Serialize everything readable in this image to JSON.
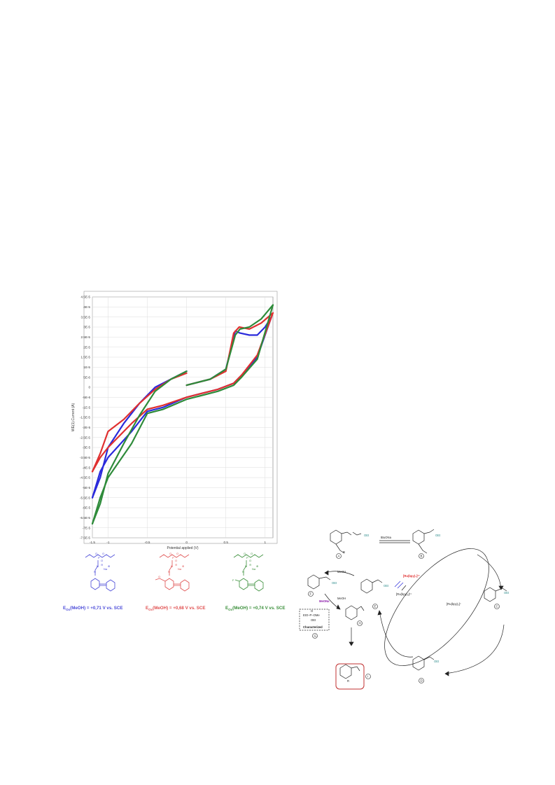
{
  "chart_data": {
    "type": "line",
    "title": "",
    "xlabel": "Potential applied (V)",
    "ylabel": "WE(1).Current (A)",
    "xlim": [
      -1.2,
      1.1
    ],
    "ylim": [
      -7.5e-05,
      4.5e-05
    ],
    "grid": true,
    "x_ticks": [
      "-1.5",
      "-1",
      "-0.5",
      "0",
      "0.5",
      "1"
    ],
    "x_tick_values": [
      -1.2,
      -1,
      -0.5,
      0,
      0.5,
      1
    ],
    "y_ticks": [
      "4.5E-5",
      "4E-5",
      "3.5E-5",
      "3E-5",
      "2.5E-5",
      "2E-5",
      "1.5E-5",
      "1E-5",
      "5E-6",
      "0",
      "-5E-6",
      "-1E-5",
      "-1.5E-5",
      "-2E-5",
      "-2.5E-5",
      "-3E-5",
      "-3.5E-5",
      "-4E-5",
      "-4.5E-5",
      "-5E-5",
      "-5.5E-5",
      "-6E-5",
      "-6.5E-5",
      "-7E-5",
      "-7.5E-5"
    ],
    "series": [
      {
        "color": "#2a2adb",
        "segments": [
          {
            "x": [
              0,
              0.3,
              0.5,
              0.62,
              0.68,
              0.8,
              0.9,
              1.0,
              1.08
            ],
            "y": [
              1e-06,
              4e-06,
              9e-06,
              2.8e-05,
              2.7e-05,
              2.6e-05,
              2.6e-05,
              3e-05,
              3.5e-05
            ]
          },
          {
            "x": [
              1.08,
              0.9,
              0.7,
              0.6,
              0.4,
              0.2,
              0,
              -0.3,
              -0.5,
              -0.7,
              -1.0,
              -1.1,
              -1.2
            ],
            "y": [
              3.5e-05,
              1.5e-05,
              6e-06,
              2e-06,
              -1e-06,
              -3e-06,
              -5e-06,
              -1e-05,
              -1.2e-05,
              -2.2e-05,
              -3.5e-05,
              -4.2e-05,
              -5.5e-05
            ]
          },
          {
            "x": [
              -1.2,
              -1.1,
              -1.0,
              -0.8,
              -0.6,
              -0.4,
              -0.2,
              0
            ],
            "y": [
              -5.5e-05,
              -4.5e-05,
              -3e-05,
              -1.8e-05,
              -8e-06,
              0,
              4e-06,
              8e-06
            ]
          }
        ]
      },
      {
        "color": "#e03030",
        "segments": [
          {
            "x": [
              0,
              0.3,
              0.5,
              0.6,
              0.67,
              0.8,
              0.95,
              1.1
            ],
            "y": [
              1e-06,
              4e-06,
              8e-06,
              2.7e-05,
              3e-05,
              2.9e-05,
              3.2e-05,
              3.7e-05
            ]
          },
          {
            "x": [
              1.1,
              0.9,
              0.7,
              0.6,
              0.4,
              0.2,
              0,
              -0.3,
              -0.5,
              -0.7,
              -1.0,
              -1.1,
              -1.2
            ],
            "y": [
              3.7e-05,
              1.6e-05,
              6e-06,
              2e-06,
              -1e-06,
              -3e-06,
              -5e-06,
              -9e-06,
              -1.1e-05,
              -1.8e-05,
              -3e-05,
              -3.5e-05,
              -4.2e-05
            ]
          },
          {
            "x": [
              -1.2,
              -1.1,
              -1.0,
              -0.8,
              -0.6,
              -0.4,
              -0.2,
              0
            ],
            "y": [
              -4.2e-05,
              -3.3e-05,
              -2.2e-05,
              -1.6e-05,
              -8e-06,
              -1e-06,
              4e-06,
              7e-06
            ]
          }
        ]
      },
      {
        "color": "#2e8b3a",
        "segments": [
          {
            "x": [
              0,
              0.3,
              0.5,
              0.62,
              0.68,
              0.8,
              0.95,
              1.1
            ],
            "y": [
              1e-06,
              4e-06,
              9e-06,
              2.6e-05,
              2.9e-05,
              3e-05,
              3.4e-05,
              4.1e-05
            ]
          },
          {
            "x": [
              1.1,
              0.9,
              0.7,
              0.6,
              0.4,
              0.2,
              0,
              -0.3,
              -0.5,
              -0.7,
              -1.0,
              -1.1,
              -1.2
            ],
            "y": [
              4.1e-05,
              1.4e-05,
              5e-06,
              1e-06,
              -2e-06,
              -4e-06,
              -6e-06,
              -1.1e-05,
              -1.3e-05,
              -2.8e-05,
              -4.5e-05,
              -5.5e-05,
              -6.8e-05
            ]
          },
          {
            "x": [
              -1.2,
              -1.1,
              -1.0,
              -0.8,
              -0.6,
              -0.4,
              -0.2,
              0
            ],
            "y": [
              -6.8e-05,
              -5.8e-05,
              -4.3e-05,
              -2.8e-05,
              -1.4e-05,
              -2e-06,
              4e-06,
              8e-06
            ]
          }
        ]
      }
    ]
  },
  "structures": [
    {
      "id": "blue",
      "color": "#4a4ad8",
      "label_prefix": "E",
      "label_sub": "Ox",
      "label_rest": "(MeOH) = +0,71 V vs. SCE",
      "atoms": [
        "O",
        "O",
        "P",
        "O",
        "N",
        "⊖",
        "N",
        "⊕",
        "Na"
      ],
      "substituent": ""
    },
    {
      "id": "red",
      "color": "#e05050",
      "label_prefix": "E",
      "label_sub": "Ox",
      "label_rest": "(MeOH) = +0,68 V vs. SCE",
      "atoms": [
        "O",
        "O",
        "P",
        "O",
        "N",
        "⊖",
        "N",
        "⊕",
        "Na"
      ],
      "substituent": "O"
    },
    {
      "id": "green",
      "color": "#3a8f3a",
      "label_prefix": "E",
      "label_sub": "Ox",
      "label_rest": "(MeOH) = +0,74 V vs. SCE",
      "atoms": [
        "O",
        "O",
        "P",
        "O",
        "N",
        "⊖",
        "N",
        "⊕",
        "Na"
      ],
      "substituent": "F"
    }
  ],
  "mechanism": {
    "reagents": {
      "tBuONa": "tBuONa",
      "MeOH_1": "MeOH",
      "MeOH_2": "MeOH",
      "MeONa": "MeONa",
      "ru_excited": "[Ru(bpy)₃]²⁺",
      "ru_2plus": "[Ru(bpy)₃]²⁺",
      "ru_plus": "[Ru(bpy)₃]⁺",
      "characterized": "Characterized",
      "byproduct": "EtO–P–OMe",
      "byproduct_oet": "OEt",
      "byproduct_o": "O",
      "oet": "OEt",
      "r": "R"
    },
    "compounds": [
      "A",
      "B",
      "C",
      "D",
      "E",
      "F",
      "G",
      "H",
      "I"
    ]
  }
}
